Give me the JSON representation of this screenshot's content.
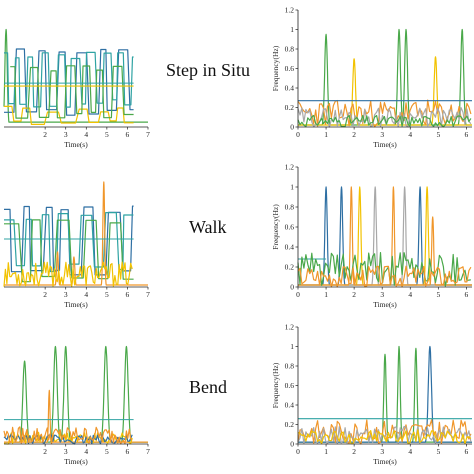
{
  "colors": {
    "blue": "#2e6fa3",
    "green": "#4aa84a",
    "orange": "#f0962a",
    "yellow": "#f2c200",
    "teal": "#2fa3a3",
    "gray": "#a8a8a8",
    "axis": "#222222"
  },
  "row_labels": [
    "Step in Situ",
    "Walk",
    "Bend"
  ],
  "chart_data": [
    {
      "id": "left-step",
      "type": "line",
      "xlabel": "Time(s)",
      "ylabel": "",
      "xlim": [
        0,
        7
      ],
      "ylim": [
        0,
        1.2
      ],
      "xticks": [
        2,
        3,
        4,
        5,
        6,
        7
      ],
      "yticks": [],
      "series": [
        {
          "color": "green",
          "style": "peaks",
          "peaks": [
            [
              0.1,
              1.0
            ]
          ],
          "base": 0.05,
          "width": 0.08
        },
        {
          "color": "blue",
          "style": "square",
          "x0": 0,
          "x1": 6.3,
          "lo": 0.12,
          "hi": 0.82,
          "period": 0.42,
          "seed": 3
        },
        {
          "color": "teal",
          "style": "square",
          "x0": 0,
          "x1": 6.3,
          "lo": 0.2,
          "hi": 0.78,
          "period": 0.36,
          "seed": 7
        },
        {
          "color": "yellow",
          "style": "square",
          "x0": 0,
          "x1": 6.3,
          "lo": 0.0,
          "hi": 0.22,
          "period": 0.6,
          "seed": 11
        },
        {
          "color": "green",
          "style": "square",
          "x0": 0.3,
          "x1": 6.3,
          "lo": 0.08,
          "hi": 0.65,
          "period": 0.5,
          "seed": 17
        },
        {
          "color": "teal",
          "style": "hline",
          "x0": 0,
          "x1": 6.3,
          "y": 0.45
        },
        {
          "color": "yellow",
          "style": "hline",
          "x0": 0,
          "x1": 6.3,
          "y": 0.42
        }
      ]
    },
    {
      "id": "right-step",
      "type": "line",
      "xlabel": "Time(s)",
      "ylabel": "Frequency(Hz)",
      "xlim": [
        0,
        6.2
      ],
      "ylim": [
        0,
        1.2
      ],
      "xticks": [
        0,
        1,
        2,
        3,
        4,
        5,
        6
      ],
      "yticks": [
        0,
        0.2,
        0.4,
        0.6,
        0.8,
        1,
        1.2
      ],
      "series": [
        {
          "color": "green",
          "style": "peaks",
          "peaks": [
            [
              1.0,
              0.95
            ],
            [
              3.6,
              1.0
            ],
            [
              3.85,
              1.0
            ],
            [
              5.85,
              1.0
            ]
          ],
          "width": 0.07
        },
        {
          "color": "yellow",
          "style": "peaks",
          "peaks": [
            [
              2.0,
              0.7
            ],
            [
              4.9,
              0.72
            ]
          ],
          "width": 0.07
        },
        {
          "color": "orange",
          "style": "noise",
          "x0": 0,
          "x1": 6.2,
          "lo": 0.0,
          "hi": 0.28,
          "seed": 23
        },
        {
          "color": "gray",
          "style": "noise",
          "x0": 0,
          "x1": 6.2,
          "lo": 0.0,
          "hi": 0.2,
          "seed": 29
        },
        {
          "color": "blue",
          "style": "hline",
          "x0": 0,
          "x1": 6.2,
          "y": 0.27
        },
        {
          "color": "green",
          "style": "noise",
          "x0": 0,
          "x1": 6.2,
          "lo": 0.0,
          "hi": 0.12,
          "seed": 31
        }
      ]
    },
    {
      "id": "left-walk",
      "type": "line",
      "xlabel": "Time(s)",
      "ylabel": "",
      "xlim": [
        0,
        7
      ],
      "ylim": [
        0,
        1.2
      ],
      "xticks": [
        2,
        3,
        4,
        5,
        6,
        7
      ],
      "yticks": [],
      "series": [
        {
          "color": "blue",
          "style": "square",
          "x0": 0,
          "x1": 6.3,
          "lo": 0.1,
          "hi": 0.82,
          "period": 0.55,
          "seed": 41
        },
        {
          "color": "teal",
          "style": "square",
          "x0": 0,
          "x1": 6.3,
          "lo": 0.15,
          "hi": 0.75,
          "period": 0.48,
          "seed": 43
        },
        {
          "color": "green",
          "style": "square",
          "x0": 0,
          "x1": 6.3,
          "lo": 0.05,
          "hi": 0.7,
          "period": 0.62,
          "seed": 47
        },
        {
          "color": "orange",
          "style": "peaks",
          "peaks": [
            [
              4.85,
              1.05
            ],
            [
              2.6,
              0.35
            ],
            [
              3.4,
              0.3
            ]
          ],
          "width": 0.06
        },
        {
          "color": "yellow",
          "style": "noise",
          "x0": 0,
          "x1": 6.3,
          "lo": 0.0,
          "hi": 0.25,
          "seed": 53
        },
        {
          "color": "teal",
          "style": "hline",
          "x0": 0,
          "x1": 6.3,
          "y": 0.48
        }
      ]
    },
    {
      "id": "right-walk",
      "type": "line",
      "xlabel": "Time(s)",
      "ylabel": "Frequency(Hz)",
      "xlim": [
        0,
        6.2
      ],
      "ylim": [
        0,
        1.2
      ],
      "xticks": [
        0,
        1,
        2,
        3,
        4,
        5,
        6
      ],
      "yticks": [
        0,
        0.2,
        0.4,
        0.6,
        0.8,
        1,
        1.2
      ],
      "series": [
        {
          "color": "blue",
          "style": "peaks",
          "peaks": [
            [
              1.0,
              1.0
            ],
            [
              1.55,
              1.0
            ],
            [
              4.35,
              1.0
            ]
          ],
          "width": 0.06
        },
        {
          "color": "yellow",
          "style": "peaks",
          "peaks": [
            [
              2.2,
              1.0
            ],
            [
              4.6,
              1.0
            ]
          ],
          "width": 0.06
        },
        {
          "color": "gray",
          "style": "peaks",
          "peaks": [
            [
              2.75,
              1.0
            ],
            [
              3.8,
              1.0
            ]
          ],
          "width": 0.06
        },
        {
          "color": "orange",
          "style": "peaks",
          "peaks": [
            [
              1.9,
              1.0
            ],
            [
              3.4,
              1.0
            ],
            [
              4.8,
              0.7
            ]
          ],
          "width": 0.05
        },
        {
          "color": "teal",
          "style": "hline",
          "x0": 0,
          "x1": 1.0,
          "y": 0.28
        },
        {
          "color": "green",
          "style": "noise",
          "x0": 0,
          "x1": 6.2,
          "lo": 0.0,
          "hi": 0.35,
          "seed": 61
        },
        {
          "color": "orange",
          "style": "noise",
          "x0": 0,
          "x1": 6.2,
          "lo": 0.0,
          "hi": 0.22,
          "seed": 67
        }
      ]
    },
    {
      "id": "left-bend",
      "type": "line",
      "xlabel": "Time(s)",
      "ylabel": "",
      "xlim": [
        0,
        7
      ],
      "ylim": [
        0,
        1.2
      ],
      "xticks": [
        2,
        3,
        4,
        5,
        6,
        7
      ],
      "yticks": [],
      "series": [
        {
          "color": "green",
          "style": "peaks",
          "peaks": [
            [
              1.0,
              0.85
            ],
            [
              2.5,
              1.0
            ],
            [
              3.0,
              1.0
            ],
            [
              4.95,
              1.0
            ],
            [
              5.95,
              1.0
            ]
          ],
          "width": 0.12
        },
        {
          "color": "orange",
          "style": "peaks",
          "peaks": [
            [
              2.2,
              0.55
            ]
          ],
          "width": 0.05
        },
        {
          "color": "teal",
          "style": "hline",
          "x0": 0,
          "x1": 6.3,
          "y": 0.25
        },
        {
          "color": "yellow",
          "style": "noise",
          "x0": 0,
          "x1": 6.3,
          "lo": 0.0,
          "hi": 0.12,
          "seed": 71
        },
        {
          "color": "blue",
          "style": "noise",
          "x0": 0,
          "x1": 6.3,
          "lo": 0.0,
          "hi": 0.1,
          "seed": 73
        },
        {
          "color": "orange",
          "style": "noise",
          "x0": 0,
          "x1": 6.3,
          "lo": 0.0,
          "hi": 0.18,
          "seed": 79
        }
      ]
    },
    {
      "id": "right-bend",
      "type": "line",
      "xlabel": "Time(s)",
      "ylabel": "Frequency(Hz)",
      "xlim": [
        0,
        6.2
      ],
      "ylim": [
        0,
        1.2
      ],
      "xticks": [
        0,
        1,
        2,
        3,
        4,
        5,
        6
      ],
      "yticks": [
        0,
        0.2,
        0.4,
        0.6,
        0.8,
        1,
        1.2
      ],
      "series": [
        {
          "color": "green",
          "style": "peaks",
          "peaks": [
            [
              3.1,
              0.92
            ],
            [
              3.6,
              1.0
            ],
            [
              4.2,
              0.98
            ]
          ],
          "width": 0.06
        },
        {
          "color": "blue",
          "style": "peaks",
          "peaks": [
            [
              4.7,
              1.0
            ]
          ],
          "width": 0.08
        },
        {
          "color": "orange",
          "style": "noise",
          "x0": 0,
          "x1": 6.2,
          "lo": 0.0,
          "hi": 0.25,
          "seed": 83
        },
        {
          "color": "gray",
          "style": "noise",
          "x0": 0,
          "x1": 6.2,
          "lo": 0.0,
          "hi": 0.18,
          "seed": 89
        },
        {
          "color": "yellow",
          "style": "noise",
          "x0": 0,
          "x1": 6.2,
          "lo": 0.0,
          "hi": 0.15,
          "seed": 97
        },
        {
          "color": "teal",
          "style": "hline",
          "x0": 0,
          "x1": 6.2,
          "y": 0.26
        }
      ]
    }
  ]
}
